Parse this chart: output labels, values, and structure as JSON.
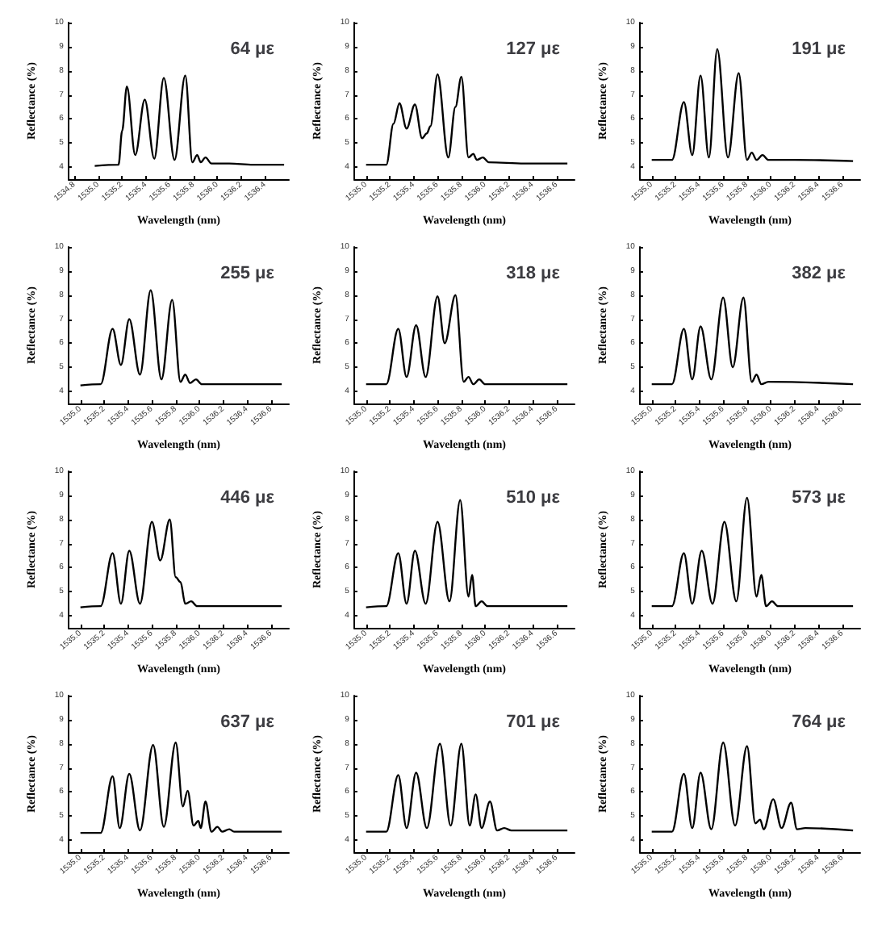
{
  "chart_data": [
    {
      "type": "line",
      "title": "64 με",
      "xlabel": "Wavelength (nm)",
      "ylabel": "Reflectance (%)",
      "color": "#000000",
      "xlim": [
        1534.75,
        1536.6
      ],
      "xticks": [
        {
          "value": 1534.8,
          "label": "1534.8"
        },
        {
          "value": 1535,
          "label": "1535.0"
        },
        {
          "value": 1535.2,
          "label": "1535.2"
        },
        {
          "value": 1535.4,
          "label": "1535.4"
        },
        {
          "value": 1535.6,
          "label": "1535.6"
        },
        {
          "value": 1535.8,
          "label": "1535.8"
        },
        {
          "value": 1536,
          "label": "1536.0"
        },
        {
          "value": 1536.2,
          "label": "1536.2"
        },
        {
          "value": 1536.4,
          "label": "1536.4"
        }
      ],
      "ylim": [
        3.5,
        10
      ],
      "yticks": [
        4,
        5,
        6,
        7,
        8,
        9,
        10
      ],
      "grid": false,
      "x": [
        1534.97,
        1535.17,
        1535.2,
        1535.24,
        1535.31,
        1535.39,
        1535.47,
        1535.55,
        1535.64,
        1535.73,
        1535.79,
        1535.83,
        1535.86,
        1535.9,
        1535.95,
        1536.1,
        1536.3,
        1536.56
      ],
      "values": [
        4.05,
        4.1,
        5.5,
        7.35,
        4.5,
        6.8,
        4.35,
        7.7,
        4.3,
        7.8,
        4.2,
        4.5,
        4.2,
        4.4,
        4.15,
        4.15,
        4.1,
        4.1
      ]
    },
    {
      "type": "line",
      "title": "127 με",
      "xlabel": "Wavelength (nm)",
      "ylabel": "Reflectance (%)",
      "color": "#000000",
      "xlim": [
        1534.9,
        1536.75
      ],
      "xticks": [
        {
          "value": 1535,
          "label": "1535.0"
        },
        {
          "value": 1535.2,
          "label": "1535.2"
        },
        {
          "value": 1535.4,
          "label": "1535.4"
        },
        {
          "value": 1535.6,
          "label": "1535.6"
        },
        {
          "value": 1535.8,
          "label": "1535.8"
        },
        {
          "value": 1536,
          "label": "1536.0"
        },
        {
          "value": 1536.2,
          "label": "1536.2"
        },
        {
          "value": 1536.4,
          "label": "1536.4"
        },
        {
          "value": 1536.6,
          "label": "1536.6"
        }
      ],
      "ylim": [
        3.5,
        10
      ],
      "yticks": [
        4,
        5,
        6,
        7,
        8,
        9,
        10
      ],
      "grid": false,
      "x": [
        1535.0,
        1535.17,
        1535.23,
        1535.28,
        1535.34,
        1535.41,
        1535.47,
        1535.51,
        1535.54,
        1535.6,
        1535.69,
        1535.75,
        1535.8,
        1535.86,
        1535.9,
        1535.93,
        1535.98,
        1536.03,
        1536.33,
        1536.69
      ],
      "values": [
        4.1,
        4.1,
        5.8,
        6.65,
        5.6,
        6.6,
        5.2,
        5.4,
        5.7,
        7.85,
        4.4,
        6.5,
        7.75,
        4.4,
        4.55,
        4.3,
        4.4,
        4.2,
        4.15,
        4.15
      ]
    },
    {
      "type": "line",
      "title": "191 με",
      "xlabel": "Wavelength (nm)",
      "ylabel": "Reflectance (%)",
      "color": "#000000",
      "xlim": [
        1534.9,
        1536.75
      ],
      "xticks": [
        {
          "value": 1535,
          "label": "1535.0"
        },
        {
          "value": 1535.2,
          "label": "1535.2"
        },
        {
          "value": 1535.4,
          "label": "1535.4"
        },
        {
          "value": 1535.6,
          "label": "1535.6"
        },
        {
          "value": 1535.8,
          "label": "1535.8"
        },
        {
          "value": 1536,
          "label": "1536.0"
        },
        {
          "value": 1536.2,
          "label": "1536.2"
        },
        {
          "value": 1536.4,
          "label": "1536.4"
        },
        {
          "value": 1536.6,
          "label": "1536.6"
        }
      ],
      "ylim": [
        3.5,
        10
      ],
      "yticks": [
        4,
        5,
        6,
        7,
        8,
        9,
        10
      ],
      "grid": false,
      "x": [
        1535.0,
        1535.17,
        1535.27,
        1535.34,
        1535.41,
        1535.48,
        1535.55,
        1535.64,
        1535.73,
        1535.8,
        1535.84,
        1535.88,
        1535.93,
        1535.98,
        1536.2,
        1536.69
      ],
      "values": [
        4.3,
        4.3,
        6.7,
        4.5,
        7.8,
        4.4,
        8.9,
        4.4,
        7.9,
        4.3,
        4.6,
        4.3,
        4.5,
        4.3,
        4.3,
        4.25
      ]
    },
    {
      "type": "line",
      "title": "255 με",
      "xlabel": "Wavelength (nm)",
      "ylabel": "Reflectance (%)",
      "color": "#000000",
      "xlim": [
        1534.9,
        1536.75
      ],
      "xticks": [
        {
          "value": 1535,
          "label": "1535.0"
        },
        {
          "value": 1535.2,
          "label": "1535.2"
        },
        {
          "value": 1535.4,
          "label": "1535.4"
        },
        {
          "value": 1535.6,
          "label": "1535.6"
        },
        {
          "value": 1535.8,
          "label": "1535.8"
        },
        {
          "value": 1536,
          "label": "1536.0"
        },
        {
          "value": 1536.2,
          "label": "1536.2"
        },
        {
          "value": 1536.4,
          "label": "1536.4"
        },
        {
          "value": 1536.6,
          "label": "1536.6"
        }
      ],
      "ylim": [
        3.5,
        10
      ],
      "yticks": [
        4,
        5,
        6,
        7,
        8,
        9,
        10
      ],
      "grid": false,
      "x": [
        1535.0,
        1535.17,
        1535.27,
        1535.34,
        1535.41,
        1535.5,
        1535.59,
        1535.68,
        1535.77,
        1535.84,
        1535.88,
        1535.92,
        1535.97,
        1536.02,
        1536.69
      ],
      "values": [
        4.25,
        4.3,
        6.6,
        5.1,
        7.0,
        4.7,
        8.2,
        4.5,
        7.8,
        4.4,
        4.7,
        4.35,
        4.5,
        4.3,
        4.3
      ]
    },
    {
      "type": "line",
      "title": "318 με",
      "xlabel": "Wavelength (nm)",
      "ylabel": "Reflectance (%)",
      "color": "#000000",
      "xlim": [
        1534.9,
        1536.75
      ],
      "xticks": [
        {
          "value": 1535,
          "label": "1535.0"
        },
        {
          "value": 1535.2,
          "label": "1535.2"
        },
        {
          "value": 1535.4,
          "label": "1535.4"
        },
        {
          "value": 1535.6,
          "label": "1535.6"
        },
        {
          "value": 1535.8,
          "label": "1535.8"
        },
        {
          "value": 1536,
          "label": "1536.0"
        },
        {
          "value": 1536.2,
          "label": "1536.2"
        },
        {
          "value": 1536.4,
          "label": "1536.4"
        },
        {
          "value": 1536.6,
          "label": "1536.6"
        }
      ],
      "ylim": [
        3.5,
        10
      ],
      "yticks": [
        4,
        5,
        6,
        7,
        8,
        9,
        10
      ],
      "grid": false,
      "x": [
        1535.0,
        1535.17,
        1535.27,
        1535.34,
        1535.42,
        1535.5,
        1535.6,
        1535.66,
        1535.75,
        1535.82,
        1535.86,
        1535.9,
        1535.95,
        1536.0,
        1536.69
      ],
      "values": [
        4.3,
        4.3,
        6.6,
        4.6,
        6.75,
        4.6,
        7.95,
        6.0,
        8.0,
        4.4,
        4.6,
        4.3,
        4.5,
        4.3,
        4.3
      ]
    },
    {
      "type": "line",
      "title": "382 με",
      "xlabel": "Wavelength (nm)",
      "ylabel": "Reflectance (%)",
      "color": "#000000",
      "xlim": [
        1534.9,
        1536.75
      ],
      "xticks": [
        {
          "value": 1535,
          "label": "1535.0"
        },
        {
          "value": 1535.2,
          "label": "1535.2"
        },
        {
          "value": 1535.4,
          "label": "1535.4"
        },
        {
          "value": 1535.6,
          "label": "1535.6"
        },
        {
          "value": 1535.8,
          "label": "1535.8"
        },
        {
          "value": 1536,
          "label": "1536.0"
        },
        {
          "value": 1536.2,
          "label": "1536.2"
        },
        {
          "value": 1536.4,
          "label": "1536.4"
        },
        {
          "value": 1536.6,
          "label": "1536.6"
        }
      ],
      "ylim": [
        3.5,
        10
      ],
      "yticks": [
        4,
        5,
        6,
        7,
        8,
        9,
        10
      ],
      "grid": false,
      "x": [
        1535.0,
        1535.17,
        1535.27,
        1535.34,
        1535.41,
        1535.5,
        1535.6,
        1535.68,
        1535.77,
        1535.84,
        1535.88,
        1535.92,
        1535.98,
        1536.69
      ],
      "values": [
        4.3,
        4.3,
        6.6,
        4.5,
        6.7,
        4.5,
        7.9,
        5.0,
        7.9,
        4.4,
        4.7,
        4.3,
        4.4,
        4.3
      ]
    },
    {
      "type": "line",
      "title": "446 με",
      "xlabel": "Wavelength (nm)",
      "ylabel": "Reflectance (%)",
      "color": "#000000",
      "xlim": [
        1534.9,
        1536.75
      ],
      "xticks": [
        {
          "value": 1535,
          "label": "1535.0"
        },
        {
          "value": 1535.2,
          "label": "1535.2"
        },
        {
          "value": 1535.4,
          "label": "1535.4"
        },
        {
          "value": 1535.6,
          "label": "1535.6"
        },
        {
          "value": 1535.8,
          "label": "1535.8"
        },
        {
          "value": 1536,
          "label": "1536.0"
        },
        {
          "value": 1536.2,
          "label": "1536.2"
        },
        {
          "value": 1536.4,
          "label": "1536.4"
        },
        {
          "value": 1536.6,
          "label": "1536.6"
        }
      ],
      "ylim": [
        3.5,
        10
      ],
      "yticks": [
        4,
        5,
        6,
        7,
        8,
        9,
        10
      ],
      "grid": false,
      "x": [
        1535.0,
        1535.17,
        1535.27,
        1535.34,
        1535.41,
        1535.5,
        1535.6,
        1535.67,
        1535.75,
        1535.8,
        1535.84,
        1535.88,
        1535.93,
        1535.98,
        1536.69
      ],
      "values": [
        4.35,
        4.4,
        6.6,
        4.5,
        6.7,
        4.5,
        7.9,
        6.3,
        8.0,
        5.6,
        5.4,
        4.5,
        4.6,
        4.4,
        4.4
      ]
    },
    {
      "type": "line",
      "title": "510 με",
      "xlabel": "Wavelength (nm)",
      "ylabel": "Reflectance (%)",
      "color": "#000000",
      "xlim": [
        1534.9,
        1536.75
      ],
      "xticks": [
        {
          "value": 1535,
          "label": "1535.0"
        },
        {
          "value": 1535.2,
          "label": "1535.2"
        },
        {
          "value": 1535.4,
          "label": "1535.4"
        },
        {
          "value": 1535.6,
          "label": "1535.6"
        },
        {
          "value": 1535.8,
          "label": "1535.8"
        },
        {
          "value": 1536,
          "label": "1536.0"
        },
        {
          "value": 1536.2,
          "label": "1536.2"
        },
        {
          "value": 1536.4,
          "label": "1536.4"
        },
        {
          "value": 1536.6,
          "label": "1536.6"
        }
      ],
      "ylim": [
        3.5,
        10
      ],
      "yticks": [
        4,
        5,
        6,
        7,
        8,
        9,
        10
      ],
      "grid": false,
      "x": [
        1535.0,
        1535.17,
        1535.27,
        1535.34,
        1535.41,
        1535.5,
        1535.6,
        1535.7,
        1535.79,
        1535.86,
        1535.89,
        1535.92,
        1535.97,
        1536.02,
        1536.69
      ],
      "values": [
        4.35,
        4.4,
        6.6,
        4.5,
        6.7,
        4.5,
        7.9,
        4.6,
        8.8,
        4.8,
        5.7,
        4.4,
        4.6,
        4.4,
        4.4
      ]
    },
    {
      "type": "line",
      "title": "573 με",
      "xlabel": "Wavelength (nm)",
      "ylabel": "Reflectance (%)",
      "color": "#000000",
      "xlim": [
        1534.9,
        1536.75
      ],
      "xticks": [
        {
          "value": 1535,
          "label": "1535.0"
        },
        {
          "value": 1535.2,
          "label": "1535.2"
        },
        {
          "value": 1535.4,
          "label": "1535.4"
        },
        {
          "value": 1535.6,
          "label": "1535.6"
        },
        {
          "value": 1535.8,
          "label": "1535.8"
        },
        {
          "value": 1536,
          "label": "1536.0"
        },
        {
          "value": 1536.2,
          "label": "1536.2"
        },
        {
          "value": 1536.4,
          "label": "1536.4"
        },
        {
          "value": 1536.6,
          "label": "1536.6"
        }
      ],
      "ylim": [
        3.5,
        10
      ],
      "yticks": [
        4,
        5,
        6,
        7,
        8,
        9,
        10
      ],
      "grid": false,
      "x": [
        1535.0,
        1535.17,
        1535.27,
        1535.34,
        1535.42,
        1535.51,
        1535.61,
        1535.71,
        1535.8,
        1535.88,
        1535.92,
        1535.96,
        1536.01,
        1536.06,
        1536.69
      ],
      "values": [
        4.4,
        4.4,
        6.6,
        4.5,
        6.7,
        4.5,
        7.9,
        4.6,
        8.9,
        4.8,
        5.7,
        4.4,
        4.6,
        4.4,
        4.4
      ]
    },
    {
      "type": "line",
      "title": "637 με",
      "xlabel": "Wavelength (nm)",
      "ylabel": "Reflectance (%)",
      "color": "#000000",
      "xlim": [
        1534.9,
        1536.75
      ],
      "xticks": [
        {
          "value": 1535,
          "label": "1535.0"
        },
        {
          "value": 1535.2,
          "label": "1535.2"
        },
        {
          "value": 1535.4,
          "label": "1535.4"
        },
        {
          "value": 1535.6,
          "label": "1535.6"
        },
        {
          "value": 1535.8,
          "label": "1535.8"
        },
        {
          "value": 1536,
          "label": "1536.0"
        },
        {
          "value": 1536.2,
          "label": "1536.2"
        },
        {
          "value": 1536.4,
          "label": "1536.4"
        },
        {
          "value": 1536.6,
          "label": "1536.6"
        }
      ],
      "ylim": [
        3.5,
        10
      ],
      "yticks": [
        4,
        5,
        6,
        7,
        8,
        9,
        10
      ],
      "grid": false,
      "x": [
        1535.0,
        1535.17,
        1535.27,
        1535.33,
        1535.41,
        1535.5,
        1535.61,
        1535.7,
        1535.8,
        1535.86,
        1535.9,
        1535.95,
        1535.99,
        1536.01,
        1536.05,
        1536.1,
        1536.15,
        1536.19,
        1536.25,
        1536.29,
        1536.69
      ],
      "values": [
        4.3,
        4.3,
        6.65,
        4.5,
        6.75,
        4.4,
        7.95,
        4.55,
        8.05,
        5.4,
        6.05,
        4.6,
        4.8,
        4.5,
        5.6,
        4.35,
        4.55,
        4.35,
        4.45,
        4.35,
        4.35
      ]
    },
    {
      "type": "line",
      "title": "701 με",
      "xlabel": "Wavelength (nm)",
      "ylabel": "Reflectance (%)",
      "color": "#000000",
      "xlim": [
        1534.9,
        1536.75
      ],
      "xticks": [
        {
          "value": 1535,
          "label": "1535.0"
        },
        {
          "value": 1535.2,
          "label": "1535.2"
        },
        {
          "value": 1535.4,
          "label": "1535.4"
        },
        {
          "value": 1535.6,
          "label": "1535.6"
        },
        {
          "value": 1535.8,
          "label": "1535.8"
        },
        {
          "value": 1536,
          "label": "1536.0"
        },
        {
          "value": 1536.2,
          "label": "1536.2"
        },
        {
          "value": 1536.4,
          "label": "1536.4"
        },
        {
          "value": 1536.6,
          "label": "1536.6"
        }
      ],
      "ylim": [
        3.5,
        10
      ],
      "yticks": [
        4,
        5,
        6,
        7,
        8,
        9,
        10
      ],
      "grid": false,
      "x": [
        1535.0,
        1535.17,
        1535.27,
        1535.34,
        1535.42,
        1535.51,
        1535.62,
        1535.71,
        1535.8,
        1535.87,
        1535.92,
        1535.97,
        1536.04,
        1536.1,
        1536.16,
        1536.22,
        1536.69
      ],
      "values": [
        4.35,
        4.35,
        6.7,
        4.5,
        6.8,
        4.5,
        8.0,
        4.6,
        8.0,
        4.6,
        5.9,
        4.5,
        5.6,
        4.4,
        4.5,
        4.4,
        4.4
      ]
    },
    {
      "type": "line",
      "title": "764 με",
      "xlabel": "Wavelength (nm)",
      "ylabel": "Reflectance (%)",
      "color": "#000000",
      "xlim": [
        1534.9,
        1536.75
      ],
      "xticks": [
        {
          "value": 1535,
          "label": "1535.0"
        },
        {
          "value": 1535.2,
          "label": "1535.2"
        },
        {
          "value": 1535.4,
          "label": "1535.4"
        },
        {
          "value": 1535.6,
          "label": "1535.6"
        },
        {
          "value": 1535.8,
          "label": "1535.8"
        },
        {
          "value": 1536,
          "label": "1536.0"
        },
        {
          "value": 1536.2,
          "label": "1536.2"
        },
        {
          "value": 1536.4,
          "label": "1536.4"
        },
        {
          "value": 1536.6,
          "label": "1536.6"
        }
      ],
      "ylim": [
        3.5,
        10
      ],
      "yticks": [
        4,
        5,
        6,
        7,
        8,
        9,
        10
      ],
      "grid": false,
      "x": [
        1535.0,
        1535.17,
        1535.27,
        1535.34,
        1535.41,
        1535.5,
        1535.6,
        1535.7,
        1535.8,
        1535.87,
        1535.91,
        1535.94,
        1536.02,
        1536.09,
        1536.17,
        1536.22,
        1536.29,
        1536.69
      ],
      "values": [
        4.35,
        4.35,
        6.75,
        4.5,
        6.8,
        4.45,
        8.05,
        4.6,
        7.9,
        4.7,
        4.85,
        4.45,
        5.7,
        4.5,
        5.55,
        4.45,
        4.5,
        4.4
      ]
    }
  ]
}
